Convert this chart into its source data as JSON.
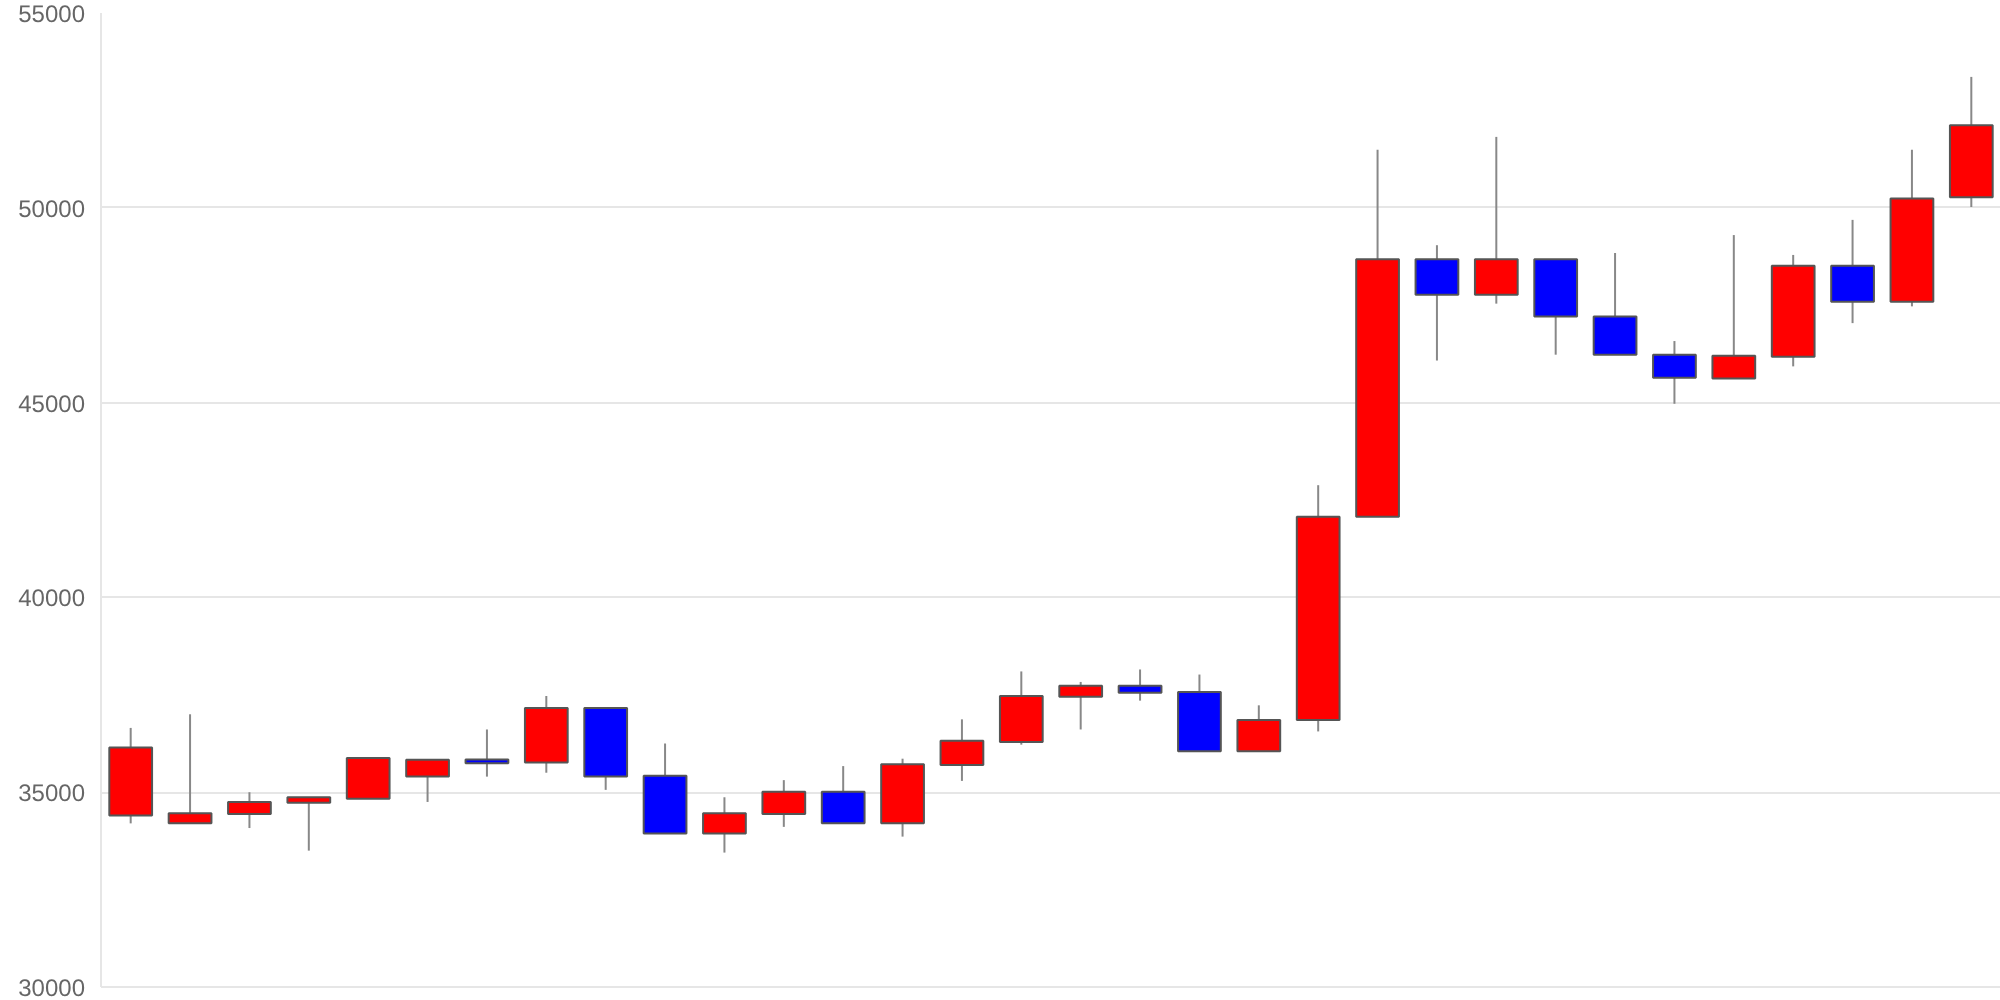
{
  "chart_data": {
    "type": "candlestick",
    "categories": [
      null,
      null,
      null,
      null,
      null,
      null,
      null,
      null,
      null,
      null,
      null,
      null,
      null,
      null,
      null,
      null,
      null,
      null,
      null,
      null,
      null,
      null,
      null,
      null,
      null,
      null,
      null,
      null,
      null,
      null,
      null,
      null
    ],
    "ohlc": [
      [
        34400,
        36650,
        34200,
        36150
      ],
      [
        34200,
        37000,
        34200,
        34460
      ],
      [
        34440,
        35000,
        34080,
        34750
      ],
      [
        34730,
        34870,
        33500,
        34870
      ],
      [
        34830,
        35880,
        34830,
        35880
      ],
      [
        35400,
        35830,
        34750,
        35830
      ],
      [
        35840,
        36610,
        35400,
        35740
      ],
      [
        35760,
        37470,
        35500,
        37160
      ],
      [
        37160,
        37160,
        35060,
        35400
      ],
      [
        35420,
        36250,
        33940,
        33940
      ],
      [
        33940,
        34870,
        33450,
        34460
      ],
      [
        34440,
        35310,
        34110,
        35010
      ],
      [
        35010,
        35670,
        34200,
        34200
      ],
      [
        34200,
        35860,
        33860,
        35720
      ],
      [
        35700,
        36870,
        35290,
        36320
      ],
      [
        36290,
        38100,
        36220,
        37470
      ],
      [
        37450,
        37830,
        36610,
        37730
      ],
      [
        37730,
        38150,
        37350,
        37550
      ],
      [
        37570,
        38020,
        36050,
        36050
      ],
      [
        36050,
        37230,
        36050,
        36850
      ],
      [
        36850,
        42880,
        36560,
        42070
      ],
      [
        42070,
        51490,
        42070,
        48680
      ],
      [
        48680,
        49040,
        46080,
        47770
      ],
      [
        47770,
        51820,
        47540,
        48680
      ],
      [
        48680,
        48680,
        46230,
        47210
      ],
      [
        47210,
        48840,
        46230,
        46230
      ],
      [
        46230,
        46580,
        44970,
        45640
      ],
      [
        45620,
        49300,
        45620,
        46200
      ],
      [
        46180,
        48790,
        45930,
        48510
      ],
      [
        48510,
        49690,
        47040,
        47590
      ],
      [
        47590,
        51490,
        47470,
        50240
      ],
      [
        50270,
        53360,
        50020,
        52120
      ]
    ],
    "colors": [
      "#ff0000",
      "#ff0000",
      "#ff0000",
      "#ff0000",
      "#ff0000",
      "#ff0000",
      "#0000ff",
      "#ff0000",
      "#0000ff",
      "#0000ff",
      "#ff0000",
      "#ff0000",
      "#0000ff",
      "#ff0000",
      "#ff0000",
      "#ff0000",
      "#ff0000",
      "#0000ff",
      "#0000ff",
      "#ff0000",
      "#ff0000",
      "#ff0000",
      "#0000ff",
      "#ff0000",
      "#0000ff",
      "#0000ff",
      "#0000ff",
      "#ff0000",
      "#ff0000",
      "#0000ff",
      "#ff0000",
      "#ff0000"
    ],
    "ylim": [
      30000,
      55000
    ],
    "yticks": [
      30000,
      35000,
      40000,
      45000,
      50000,
      55000
    ],
    "grid": "y",
    "tick_labels": "y"
  }
}
